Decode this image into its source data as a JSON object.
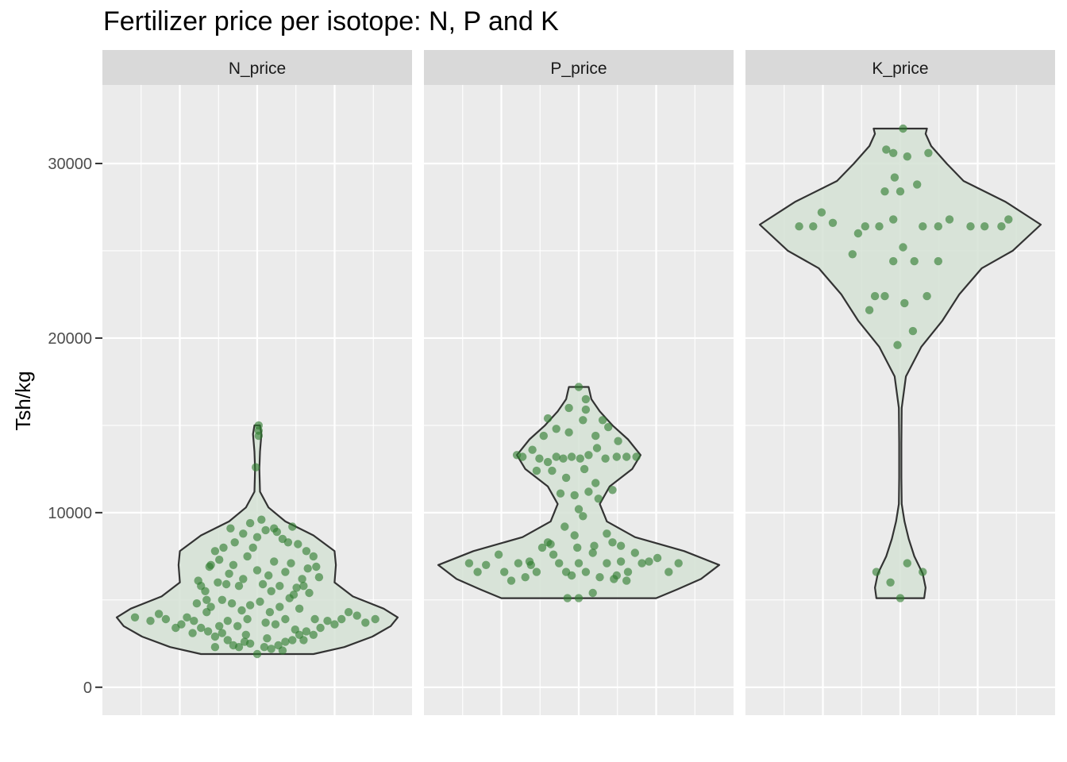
{
  "chart_data": {
    "type": "violin",
    "title": "Fertilizer price per isotope: N, P and K",
    "ylabel": "Tsh/kg",
    "xlabel": "",
    "ylim": [
      -1600,
      34500
    ],
    "yticks": [
      0,
      10000,
      20000,
      30000
    ],
    "ytick_labels": [
      "0",
      "10000",
      "20000",
      "30000"
    ],
    "grid": true,
    "colors": {
      "panel_bg": "#ebebeb",
      "strip_bg": "#d9d9d9",
      "grid": "#ffffff",
      "violin_fill": "#d5e2d5",
      "violin_stroke": "#333333",
      "points": "#2e7d2e"
    },
    "panels": [
      {
        "label": "N_price",
        "violin": [
          [
            1900,
            0.4
          ],
          [
            2300,
            0.62
          ],
          [
            2900,
            0.82
          ],
          [
            3500,
            0.95
          ],
          [
            4000,
            1.0
          ],
          [
            4500,
            0.9
          ],
          [
            5200,
            0.68
          ],
          [
            6000,
            0.55
          ],
          [
            7000,
            0.56
          ],
          [
            7800,
            0.55
          ],
          [
            8700,
            0.4
          ],
          [
            9500,
            0.2
          ],
          [
            10300,
            0.08
          ],
          [
            11200,
            0.02
          ],
          [
            12500,
            0.015
          ],
          [
            13500,
            0.02
          ],
          [
            14500,
            0.03
          ],
          [
            15000,
            0.02
          ]
        ],
        "points": [
          [
            0.01,
            15000
          ],
          [
            0.01,
            14700
          ],
          [
            0.01,
            14400
          ],
          [
            -0.01,
            12600
          ],
          [
            -0.87,
            4000
          ],
          [
            -0.76,
            3800
          ],
          [
            -0.7,
            4200
          ],
          [
            -0.65,
            3900
          ],
          [
            -0.58,
            3400
          ],
          [
            -0.54,
            3600
          ],
          [
            -0.5,
            4000
          ],
          [
            -0.45,
            3800
          ],
          [
            -0.4,
            3400
          ],
          [
            -0.36,
            4300
          ],
          [
            -0.33,
            4600
          ],
          [
            -0.3,
            2900
          ],
          [
            -0.25,
            3100
          ],
          [
            -0.21,
            2700
          ],
          [
            -0.17,
            2400
          ],
          [
            -0.13,
            2300
          ],
          [
            -0.09,
            2600
          ],
          [
            -0.05,
            2500
          ],
          [
            0.0,
            1900
          ],
          [
            0.05,
            2300
          ],
          [
            0.1,
            2200
          ],
          [
            0.15,
            2400
          ],
          [
            0.2,
            2600
          ],
          [
            0.25,
            2700
          ],
          [
            0.3,
            3000
          ],
          [
            0.35,
            3200
          ],
          [
            0.4,
            3000
          ],
          [
            0.45,
            3400
          ],
          [
            0.5,
            3800
          ],
          [
            0.55,
            3600
          ],
          [
            0.6,
            3900
          ],
          [
            0.65,
            4300
          ],
          [
            0.71,
            4100
          ],
          [
            0.77,
            3700
          ],
          [
            0.84,
            3900
          ],
          [
            -0.43,
            4800
          ],
          [
            -0.4,
            5800
          ],
          [
            -0.37,
            5500
          ],
          [
            -0.34,
            6900
          ],
          [
            -0.3,
            7800
          ],
          [
            -0.27,
            7300
          ],
          [
            -0.24,
            8000
          ],
          [
            -0.2,
            6500
          ],
          [
            -0.17,
            7000
          ],
          [
            -0.13,
            5800
          ],
          [
            -0.1,
            6200
          ],
          [
            -0.07,
            7500
          ],
          [
            -0.03,
            8000
          ],
          [
            0.0,
            6700
          ],
          [
            0.04,
            5900
          ],
          [
            0.08,
            6400
          ],
          [
            0.12,
            7200
          ],
          [
            0.16,
            5800
          ],
          [
            0.2,
            6600
          ],
          [
            0.24,
            7100
          ],
          [
            0.28,
            5700
          ],
          [
            0.32,
            6200
          ],
          [
            0.36,
            6800
          ],
          [
            0.4,
            7500
          ],
          [
            -0.25,
            5000
          ],
          [
            -0.18,
            4800
          ],
          [
            -0.11,
            4400
          ],
          [
            -0.05,
            4700
          ],
          [
            0.02,
            4900
          ],
          [
            0.09,
            4300
          ],
          [
            0.16,
            4600
          ],
          [
            0.23,
            5100
          ],
          [
            0.3,
            4500
          ],
          [
            0.37,
            5400
          ],
          [
            -0.21,
            3800
          ],
          [
            -0.14,
            3500
          ],
          [
            -0.07,
            3900
          ],
          [
            0.06,
            3700
          ],
          [
            0.13,
            3600
          ],
          [
            0.2,
            3900
          ],
          [
            -0.35,
            3200
          ],
          [
            -0.27,
            3500
          ],
          [
            0.27,
            3300
          ],
          [
            0.41,
            3900
          ],
          [
            -0.1,
            8800
          ],
          [
            -0.05,
            9400
          ],
          [
            0.0,
            8600
          ],
          [
            0.06,
            9000
          ],
          [
            0.12,
            9100
          ],
          [
            0.18,
            8500
          ],
          [
            -0.16,
            8300
          ],
          [
            0.22,
            8300
          ],
          [
            0.29,
            8200
          ],
          [
            0.35,
            7800
          ],
          [
            -0.36,
            5000
          ],
          [
            -0.33,
            7000
          ],
          [
            0.42,
            6900
          ],
          [
            0.44,
            6300
          ],
          [
            -0.42,
            6100
          ],
          [
            0.33,
            5800
          ],
          [
            -0.22,
            5900
          ],
          [
            0.26,
            5300
          ],
          [
            -0.28,
            6000
          ],
          [
            0.1,
            5500
          ],
          [
            0.14,
            8900
          ],
          [
            0.03,
            9600
          ],
          [
            -0.19,
            9100
          ],
          [
            0.25,
            9200
          ],
          [
            -0.3,
            2300
          ],
          [
            0.18,
            2100
          ],
          [
            -0.08,
            3000
          ],
          [
            0.07,
            2800
          ],
          [
            0.33,
            2700
          ],
          [
            -0.46,
            3100
          ]
        ]
      },
      {
        "label": "P_price",
        "violin": [
          [
            5100,
            0.55
          ],
          [
            5600,
            0.7
          ],
          [
            6200,
            0.87
          ],
          [
            7000,
            1.0
          ],
          [
            7800,
            0.75
          ],
          [
            8600,
            0.4
          ],
          [
            9500,
            0.2
          ],
          [
            10500,
            0.15
          ],
          [
            11500,
            0.22
          ],
          [
            12500,
            0.38
          ],
          [
            13300,
            0.44
          ],
          [
            14200,
            0.35
          ],
          [
            15000,
            0.24
          ],
          [
            15800,
            0.15
          ],
          [
            16500,
            0.09
          ],
          [
            17200,
            0.07
          ]
        ],
        "points": [
          [
            -0.78,
            7100
          ],
          [
            -0.72,
            6600
          ],
          [
            -0.66,
            7000
          ],
          [
            -0.57,
            7600
          ],
          [
            -0.53,
            6600
          ],
          [
            -0.48,
            6100
          ],
          [
            -0.43,
            7100
          ],
          [
            -0.38,
            6300
          ],
          [
            -0.34,
            7000
          ],
          [
            -0.3,
            6600
          ],
          [
            -0.26,
            8000
          ],
          [
            -0.22,
            8300
          ],
          [
            -0.18,
            7600
          ],
          [
            -0.14,
            7100
          ],
          [
            -0.09,
            6600
          ],
          [
            -0.05,
            6400
          ],
          [
            0.0,
            7100
          ],
          [
            0.05,
            6600
          ],
          [
            0.1,
            7700
          ],
          [
            0.15,
            6300
          ],
          [
            0.2,
            7100
          ],
          [
            0.25,
            6200
          ],
          [
            0.3,
            7200
          ],
          [
            0.35,
            6600
          ],
          [
            0.4,
            7700
          ],
          [
            0.45,
            7100
          ],
          [
            0.5,
            7200
          ],
          [
            0.56,
            7400
          ],
          [
            0.64,
            6600
          ],
          [
            0.71,
            7100
          ],
          [
            -0.08,
            5100
          ],
          [
            0.0,
            5100
          ],
          [
            0.1,
            5400
          ],
          [
            -0.44,
            13300
          ],
          [
            -0.4,
            13200
          ],
          [
            -0.33,
            13600
          ],
          [
            -0.28,
            13100
          ],
          [
            -0.22,
            12900
          ],
          [
            -0.16,
            13200
          ],
          [
            -0.11,
            13100
          ],
          [
            -0.05,
            13200
          ],
          [
            0.01,
            13100
          ],
          [
            0.07,
            13300
          ],
          [
            0.13,
            13700
          ],
          [
            0.19,
            13100
          ],
          [
            0.27,
            13200
          ],
          [
            0.34,
            13200
          ],
          [
            0.41,
            13200
          ],
          [
            -0.19,
            12400
          ],
          [
            -0.09,
            12000
          ],
          [
            0.04,
            12500
          ],
          [
            0.12,
            11700
          ],
          [
            -0.13,
            11100
          ],
          [
            -0.03,
            11000
          ],
          [
            0.07,
            11200
          ],
          [
            0.14,
            10800
          ],
          [
            0.0,
            10200
          ],
          [
            0.03,
            9800
          ],
          [
            -0.1,
            9200
          ],
          [
            -0.25,
            14400
          ],
          [
            -0.16,
            14800
          ],
          [
            -0.07,
            14600
          ],
          [
            0.03,
            15300
          ],
          [
            0.12,
            14400
          ],
          [
            0.21,
            14900
          ],
          [
            -0.22,
            15400
          ],
          [
            0.17,
            15300
          ],
          [
            -0.07,
            16000
          ],
          [
            0.05,
            16500
          ],
          [
            0.0,
            17200
          ],
          [
            0.05,
            15900
          ],
          [
            0.28,
            14100
          ],
          [
            -0.3,
            12400
          ],
          [
            0.24,
            11300
          ],
          [
            -0.03,
            8700
          ],
          [
            0.11,
            8100
          ],
          [
            0.2,
            8800
          ],
          [
            -0.2,
            8200
          ],
          [
            0.3,
            8100
          ],
          [
            -0.01,
            8000
          ],
          [
            0.24,
            8300
          ],
          [
            0.34,
            6100
          ],
          [
            0.27,
            6400
          ],
          [
            -0.35,
            7200
          ]
        ]
      },
      {
        "label": "K_price",
        "violin": [
          [
            5100,
            0.17
          ],
          [
            5700,
            0.18
          ],
          [
            6500,
            0.16
          ],
          [
            7500,
            0.1
          ],
          [
            8500,
            0.06
          ],
          [
            9500,
            0.03
          ],
          [
            10500,
            0.01
          ],
          [
            12000,
            0.008
          ],
          [
            14000,
            0.008
          ],
          [
            16000,
            0.01
          ],
          [
            17800,
            0.04
          ],
          [
            19500,
            0.15
          ],
          [
            21000,
            0.3
          ],
          [
            22500,
            0.42
          ],
          [
            24000,
            0.58
          ],
          [
            25000,
            0.8
          ],
          [
            26500,
            1.0
          ],
          [
            27800,
            0.75
          ],
          [
            29000,
            0.45
          ],
          [
            30000,
            0.33
          ],
          [
            31000,
            0.22
          ],
          [
            31700,
            0.18
          ],
          [
            32000,
            0.19
          ]
        ],
        "points": [
          [
            0.02,
            32000
          ],
          [
            -0.1,
            30800
          ],
          [
            0.05,
            30400
          ],
          [
            0.2,
            30600
          ],
          [
            -0.05,
            30600
          ],
          [
            -0.04,
            29200
          ],
          [
            -0.11,
            28400
          ],
          [
            0.12,
            28800
          ],
          [
            0.0,
            28400
          ],
          [
            -0.56,
            27200
          ],
          [
            -0.72,
            26400
          ],
          [
            -0.62,
            26400
          ],
          [
            -0.48,
            26600
          ],
          [
            -0.3,
            26000
          ],
          [
            -0.25,
            26400
          ],
          [
            -0.15,
            26400
          ],
          [
            -0.05,
            26800
          ],
          [
            0.16,
            26400
          ],
          [
            0.27,
            26400
          ],
          [
            0.35,
            26800
          ],
          [
            0.5,
            26400
          ],
          [
            0.6,
            26400
          ],
          [
            0.72,
            26400
          ],
          [
            0.77,
            26800
          ],
          [
            -0.34,
            24800
          ],
          [
            0.02,
            25200
          ],
          [
            -0.05,
            24400
          ],
          [
            0.1,
            24400
          ],
          [
            0.27,
            24400
          ],
          [
            -0.11,
            22400
          ],
          [
            -0.18,
            22400
          ],
          [
            0.03,
            22000
          ],
          [
            0.19,
            22400
          ],
          [
            -0.22,
            21600
          ],
          [
            0.09,
            20400
          ],
          [
            -0.02,
            19600
          ],
          [
            -0.17,
            6600
          ],
          [
            -0.07,
            6000
          ],
          [
            0.05,
            7100
          ],
          [
            0.16,
            6600
          ],
          [
            0.0,
            5100
          ]
        ]
      }
    ]
  }
}
